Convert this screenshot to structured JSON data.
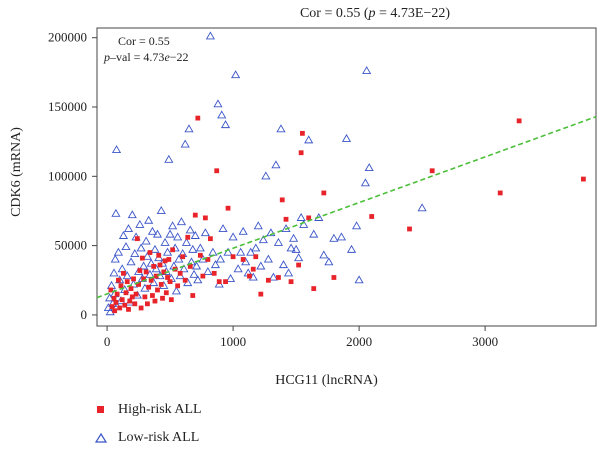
{
  "colors": {
    "high_risk": "#e8242a",
    "low_risk": "#3a55c8",
    "trend": "#4cbf3a",
    "axis": "#444444"
  },
  "chart_data": {
    "type": "scatter",
    "title_parts": {
      "pre": "Cor = 0.55 (",
      "p": "p",
      "post": " = 4.73E−22)"
    },
    "annotation": {
      "cor_line": "Cor = 0.55",
      "p_italic": "p",
      "p_mid": "–val = 4.73",
      "e_italic": "e",
      "p_tail": "−22"
    },
    "xlabel": "HCG11 (lncRNA)",
    "ylabel": "CDK6 (mRNA)",
    "xlim": [
      -80,
      3880
    ],
    "ylim": [
      -8000,
      207000
    ],
    "x_ticks": [
      0,
      1000,
      2000,
      3000
    ],
    "x_tick_labels": [
      "0",
      "1000",
      "2000",
      "3000"
    ],
    "y_ticks": [
      0,
      50000,
      100000,
      150000,
      200000
    ],
    "y_tick_labels": [
      "0",
      "50000",
      "100000",
      "150000",
      "200000"
    ],
    "trend_line": {
      "x": [
        -80,
        3880
      ],
      "y": [
        12500,
        143000
      ]
    },
    "series": [
      {
        "name": "High-risk ALL",
        "marker": "square",
        "points": [
          [
            30,
            18000
          ],
          [
            40,
            6000
          ],
          [
            55,
            12000
          ],
          [
            60,
            3000
          ],
          [
            70,
            9000
          ],
          [
            80,
            15000
          ],
          [
            90,
            25000
          ],
          [
            100,
            5000
          ],
          [
            110,
            21000
          ],
          [
            120,
            11000
          ],
          [
            130,
            30000
          ],
          [
            140,
            7000
          ],
          [
            150,
            16000
          ],
          [
            160,
            24000
          ],
          [
            170,
            4000
          ],
          [
            180,
            10000
          ],
          [
            190,
            19000
          ],
          [
            200,
            13000
          ],
          [
            210,
            26000
          ],
          [
            220,
            8000
          ],
          [
            230,
            15000
          ],
          [
            240,
            55000
          ],
          [
            250,
            22000
          ],
          [
            260,
            32000
          ],
          [
            270,
            5000
          ],
          [
            280,
            41000
          ],
          [
            290,
            26000
          ],
          [
            300,
            13000
          ],
          [
            310,
            31000
          ],
          [
            320,
            8000
          ],
          [
            330,
            20000
          ],
          [
            340,
            45000
          ],
          [
            350,
            25000
          ],
          [
            360,
            14000
          ],
          [
            370,
            35000
          ],
          [
            380,
            10000
          ],
          [
            390,
            28000
          ],
          [
            400,
            18000
          ],
          [
            410,
            43000
          ],
          [
            420,
            36000
          ],
          [
            430,
            22000
          ],
          [
            440,
            12000
          ],
          [
            450,
            31000
          ],
          [
            460,
            39000
          ],
          [
            470,
            16000
          ],
          [
            480,
            27000
          ],
          [
            490,
            40000
          ],
          [
            500,
            24000
          ],
          [
            510,
            11000
          ],
          [
            520,
            47000
          ],
          [
            540,
            33000
          ],
          [
            560,
            21000
          ],
          [
            580,
            30000
          ],
          [
            600,
            42000
          ],
          [
            620,
            25000
          ],
          [
            640,
            56000
          ],
          [
            660,
            35000
          ],
          [
            680,
            14000
          ],
          [
            700,
            72000
          ],
          [
            720,
            142000
          ],
          [
            740,
            43000
          ],
          [
            760,
            28000
          ],
          [
            780,
            70000
          ],
          [
            800,
            40000
          ],
          [
            820,
            55000
          ],
          [
            850,
            30000
          ],
          [
            870,
            104000
          ],
          [
            890,
            24000
          ],
          [
            940,
            24000
          ],
          [
            960,
            77000
          ],
          [
            1000,
            42000
          ],
          [
            1080,
            40000
          ],
          [
            1130,
            28000
          ],
          [
            1160,
            33000
          ],
          [
            1180,
            42000
          ],
          [
            1220,
            15000
          ],
          [
            1280,
            25000
          ],
          [
            1360,
            27000
          ],
          [
            1390,
            83000
          ],
          [
            1420,
            69000
          ],
          [
            1460,
            24000
          ],
          [
            1520,
            36000
          ],
          [
            1540,
            117000
          ],
          [
            1550,
            131000
          ],
          [
            1600,
            70000
          ],
          [
            1640,
            19000
          ],
          [
            1720,
            88000
          ],
          [
            1800,
            27000
          ],
          [
            2100,
            71000
          ],
          [
            2400,
            62000
          ],
          [
            2580,
            104000
          ],
          [
            3120,
            88000
          ],
          [
            3270,
            140000
          ],
          [
            3780,
            98000
          ]
        ]
      },
      {
        "name": "Low-risk ALL",
        "marker": "triangle",
        "points": [
          [
            10,
            5000
          ],
          [
            20,
            12000
          ],
          [
            25,
            2000
          ],
          [
            35,
            21000
          ],
          [
            45,
            8000
          ],
          [
            55,
            30000
          ],
          [
            60,
            15000
          ],
          [
            65,
            40000
          ],
          [
            70,
            73000
          ],
          [
            75,
            119000
          ],
          [
            80,
            6000
          ],
          [
            90,
            45000
          ],
          [
            100,
            25000
          ],
          [
            110,
            10000
          ],
          [
            120,
            33000
          ],
          [
            130,
            57000
          ],
          [
            140,
            18000
          ],
          [
            150,
            49000
          ],
          [
            160,
            28000
          ],
          [
            170,
            62000
          ],
          [
            180,
            9000
          ],
          [
            190,
            38000
          ],
          [
            200,
            72000
          ],
          [
            210,
            22000
          ],
          [
            220,
            44000
          ],
          [
            230,
            56000
          ],
          [
            240,
            14000
          ],
          [
            250,
            31000
          ],
          [
            260,
            65000
          ],
          [
            270,
            48000
          ],
          [
            280,
            26000
          ],
          [
            290,
            35000
          ],
          [
            300,
            19000
          ],
          [
            310,
            53000
          ],
          [
            320,
            42000
          ],
          [
            330,
            68000
          ],
          [
            340,
            29000
          ],
          [
            350,
            37000
          ],
          [
            360,
            60000
          ],
          [
            370,
            23000
          ],
          [
            380,
            47000
          ],
          [
            390,
            33000
          ],
          [
            400,
            58000
          ],
          [
            410,
            41000
          ],
          [
            420,
            28000
          ],
          [
            430,
            75000
          ],
          [
            440,
            37000
          ],
          [
            450,
            21000
          ],
          [
            460,
            52000
          ],
          [
            470,
            31000
          ],
          [
            480,
            45000
          ],
          [
            490,
            112000
          ],
          [
            500,
            58000
          ],
          [
            510,
            26000
          ],
          [
            520,
            64000
          ],
          [
            530,
            35000
          ],
          [
            540,
            48000
          ],
          [
            550,
            17000
          ],
          [
            560,
            56000
          ],
          [
            570,
            40000
          ],
          [
            580,
            28000
          ],
          [
            590,
            67000
          ],
          [
            600,
            44000
          ],
          [
            610,
            33000
          ],
          [
            620,
            123000
          ],
          [
            630,
            52000
          ],
          [
            640,
            23000
          ],
          [
            650,
            134000
          ],
          [
            660,
            61000
          ],
          [
            670,
            38000
          ],
          [
            680,
            47000
          ],
          [
            690,
            29000
          ],
          [
            700,
            57000
          ],
          [
            710,
            35000
          ],
          [
            720,
            25000
          ],
          [
            740,
            48000
          ],
          [
            760,
            40000
          ],
          [
            780,
            59000
          ],
          [
            800,
            31000
          ],
          [
            820,
            201000
          ],
          [
            840,
            45000
          ],
          [
            860,
            36000
          ],
          [
            880,
            152000
          ],
          [
            890,
            22000
          ],
          [
            900,
            40000
          ],
          [
            910,
            144000
          ],
          [
            920,
            62000
          ],
          [
            940,
            137000
          ],
          [
            960,
            45000
          ],
          [
            980,
            26000
          ],
          [
            1000,
            56000
          ],
          [
            1020,
            173000
          ],
          [
            1040,
            33000
          ],
          [
            1060,
            45000
          ],
          [
            1080,
            60000
          ],
          [
            1100,
            38000
          ],
          [
            1120,
            30000
          ],
          [
            1140,
            45000
          ],
          [
            1160,
            27000
          ],
          [
            1180,
            48000
          ],
          [
            1200,
            64000
          ],
          [
            1220,
            35000
          ],
          [
            1240,
            54000
          ],
          [
            1260,
            100000
          ],
          [
            1280,
            40000
          ],
          [
            1300,
            59000
          ],
          [
            1320,
            27000
          ],
          [
            1340,
            108000
          ],
          [
            1360,
            52000
          ],
          [
            1380,
            134000
          ],
          [
            1400,
            36000
          ],
          [
            1420,
            62000
          ],
          [
            1440,
            30000
          ],
          [
            1460,
            48000
          ],
          [
            1480,
            55000
          ],
          [
            1500,
            47000
          ],
          [
            1520,
            41000
          ],
          [
            1540,
            70000
          ],
          [
            1560,
            65000
          ],
          [
            1600,
            126000
          ],
          [
            1640,
            58000
          ],
          [
            1680,
            70000
          ],
          [
            1720,
            43000
          ],
          [
            1760,
            38000
          ],
          [
            1800,
            55000
          ],
          [
            1860,
            56000
          ],
          [
            1900,
            127000
          ],
          [
            1940,
            47000
          ],
          [
            1980,
            64000
          ],
          [
            2000,
            25000
          ],
          [
            2050,
            95000
          ],
          [
            2060,
            176000
          ],
          [
            2080,
            106000
          ],
          [
            2500,
            77000
          ]
        ]
      }
    ],
    "legend": [
      {
        "label": "High-risk ALL",
        "marker": "square"
      },
      {
        "label": "Low-risk ALL",
        "marker": "triangle"
      }
    ]
  }
}
